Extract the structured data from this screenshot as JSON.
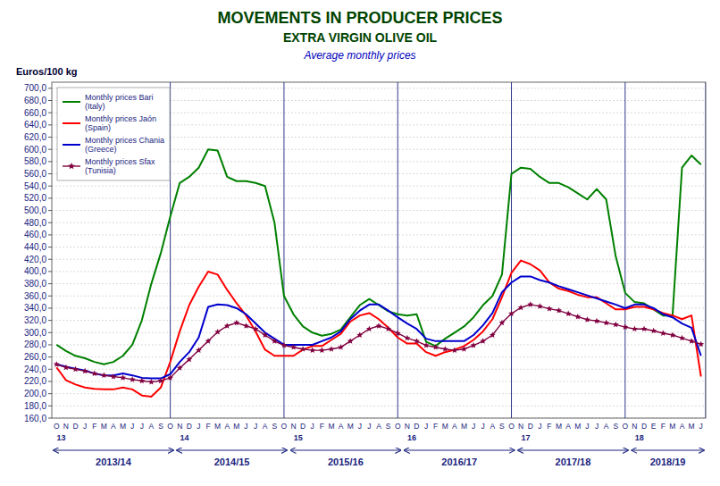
{
  "chart_data": {
    "type": "line",
    "title": "MOVEMENTS IN PRODUCER PRICES",
    "subtitle": [
      "EXTRA VIRGIN OLIVE OIL",
      "Average monthly prices"
    ],
    "ylabel": "Euros/100 kg",
    "categories": [
      "O",
      "N",
      "D",
      "J",
      "F",
      "M",
      "A",
      "M",
      "J",
      "J",
      "A",
      "S",
      "O",
      "N",
      "D",
      "J",
      "F",
      "M",
      "A",
      "M",
      "J",
      "J",
      "A",
      "S",
      "O",
      "N",
      "D",
      "J",
      "F",
      "M",
      "A",
      "M",
      "J",
      "J",
      "A",
      "S",
      "O",
      "N",
      "D",
      "J",
      "F",
      "M",
      "A",
      "M",
      "J",
      "J",
      "A",
      "S",
      "O",
      "N",
      "D",
      "J",
      "F",
      "M",
      "A",
      "M",
      "J",
      "J",
      "A",
      "S",
      "O",
      "N",
      "D",
      "E",
      "F",
      "M",
      "A",
      "M",
      "J"
    ],
    "series": [
      {
        "name": "Monthly prices Bari\n(Italy)",
        "color": "#008000",
        "values": [
          280,
          270,
          262,
          258,
          252,
          248,
          252,
          262,
          280,
          320,
          380,
          430,
          490,
          545,
          555,
          570,
          600,
          598,
          555,
          548,
          548,
          545,
          540,
          480,
          360,
          330,
          310,
          300,
          295,
          298,
          305,
          325,
          345,
          355,
          345,
          335,
          330,
          328,
          330,
          285,
          278,
          290,
          300,
          310,
          325,
          345,
          360,
          395,
          560,
          570,
          568,
          555,
          545,
          545,
          538,
          528,
          518,
          535,
          518,
          425,
          365,
          350,
          348,
          338,
          328,
          328,
          570,
          590,
          575
        ]
      },
      {
        "name": "Monthly prices Jaón\n(Spain)",
        "color": "#ff0000",
        "values": [
          243,
          222,
          215,
          210,
          208,
          207,
          207,
          210,
          207,
          197,
          195,
          210,
          252,
          302,
          345,
          375,
          400,
          395,
          370,
          348,
          328,
          302,
          272,
          262,
          262,
          262,
          272,
          278,
          278,
          288,
          298,
          318,
          328,
          332,
          322,
          308,
          292,
          282,
          282,
          268,
          262,
          268,
          272,
          278,
          288,
          302,
          322,
          358,
          398,
          418,
          412,
          402,
          382,
          372,
          368,
          362,
          358,
          358,
          348,
          338,
          338,
          342,
          342,
          338,
          332,
          328,
          322,
          328,
          228
        ]
      },
      {
        "name": "Monthly prices Chania\n(Greece)",
        "color": "#0000cc",
        "values": [
          248,
          244,
          241,
          238,
          233,
          230,
          230,
          233,
          230,
          226,
          225,
          225,
          232,
          252,
          268,
          292,
          342,
          346,
          345,
          340,
          330,
          315,
          300,
          290,
          280,
          280,
          280,
          280,
          286,
          292,
          302,
          322,
          336,
          346,
          346,
          336,
          325,
          315,
          306,
          290,
          286,
          286,
          286,
          286,
          296,
          312,
          332,
          366,
          382,
          392,
          392,
          386,
          382,
          376,
          371,
          366,
          361,
          356,
          351,
          346,
          340,
          346,
          346,
          340,
          330,
          325,
          315,
          308,
          262
        ]
      },
      {
        "name": "Monthly prices Sfax\n(Tunisia)",
        "color": "#800040",
        "marker": "star",
        "values": [
          248,
          243,
          240,
          237,
          233,
          230,
          228,
          226,
          223,
          221,
          219,
          221,
          226,
          242,
          256,
          271,
          286,
          301,
          311,
          316,
          311,
          306,
          296,
          286,
          279,
          276,
          273,
          271,
          271,
          273,
          276,
          286,
          296,
          306,
          311,
          306,
          299,
          291,
          286,
          279,
          276,
          273,
          271,
          273,
          279,
          286,
          296,
          316,
          331,
          341,
          346,
          343,
          339,
          336,
          331,
          326,
          321,
          319,
          316,
          313,
          309,
          306,
          306,
          303,
          299,
          296,
          291,
          286,
          281
        ]
      }
    ],
    "ylim": [
      160,
      710
    ],
    "yticks": [
      {
        "value": 160,
        "label": "160,0"
      },
      {
        "value": 180,
        "label": "180,0"
      },
      {
        "value": 200,
        "label": "200,0"
      },
      {
        "value": 220,
        "label": "220,0"
      },
      {
        "value": 240,
        "label": "240,0"
      },
      {
        "value": 260,
        "label": "260,0"
      },
      {
        "value": 280,
        "label": "280,0"
      },
      {
        "value": 300,
        "label": "300,0"
      },
      {
        "value": 320,
        "label": "320,0"
      },
      {
        "value": 340,
        "label": "340,0"
      },
      {
        "value": 360,
        "label": "360,0"
      },
      {
        "value": 380,
        "label": "380,0"
      },
      {
        "value": 400,
        "label": "400,0"
      },
      {
        "value": 420,
        "label": "420,0"
      },
      {
        "value": 440,
        "label": "440,0"
      },
      {
        "value": 460,
        "label": "460,0"
      },
      {
        "value": 480,
        "label": "480,0"
      },
      {
        "value": 500,
        "label": "500,0"
      },
      {
        "value": 520,
        "label": "520,0"
      },
      {
        "value": 540,
        "label": "540,0"
      },
      {
        "value": 560,
        "label": "560,0"
      },
      {
        "value": 580,
        "label": "580,0"
      },
      {
        "value": 600,
        "label": "600,0"
      },
      {
        "value": 620,
        "label": "620,0"
      },
      {
        "value": 640,
        "label": "640,0"
      },
      {
        "value": 660,
        "label": "660,0"
      },
      {
        "value": 680,
        "label": "680,0"
      },
      {
        "value": 700,
        "label": "700,0"
      }
    ],
    "grid": true,
    "legend": "upper left",
    "seasons": [
      {
        "label": "2013/14",
        "year": "13",
        "start": 0,
        "end": 12
      },
      {
        "label": "2014/15",
        "year": "14",
        "start": 13,
        "end": 24
      },
      {
        "label": "2015/16",
        "year": "15",
        "start": 25,
        "end": 36
      },
      {
        "label": "2016/17",
        "year": "16",
        "start": 37,
        "end": 48
      },
      {
        "label": "2017/18",
        "year": "17",
        "start": 49,
        "end": 60
      },
      {
        "label": "2018/19",
        "year": "18",
        "start": 61,
        "end": 68
      }
    ]
  }
}
